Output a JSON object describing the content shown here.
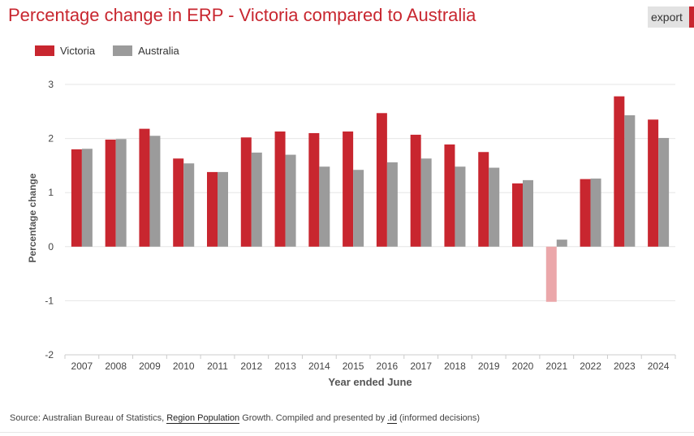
{
  "page": {
    "title": "Percentage change in ERP - Victoria compared to Australia",
    "export_label": "export",
    "source": {
      "prefix": "Source: Australian Bureau of Statistics,",
      "link1": "Region Population",
      "middle": "Growth. Compiled and presented by",
      "link2": ".id",
      "suffix": "(informed decisions)"
    }
  },
  "colors": {
    "victoria": "#c8262f",
    "australia": "#9b9b9b",
    "victoria_negative": "#eba7aa",
    "title": "#c8262f",
    "grid": "#e6e6e6"
  },
  "chart_data": {
    "type": "bar",
    "title": "Percentage change in ERP - Victoria compared to Australia",
    "xlabel": "Year ended June",
    "ylabel": "Percentage change",
    "ylim": [
      -2,
      3
    ],
    "yticks": [
      3,
      2,
      1,
      0,
      -1,
      -2
    ],
    "grid": true,
    "legend_position": "top-left",
    "categories": [
      "2007",
      "2008",
      "2009",
      "2010",
      "2011",
      "2012",
      "2013",
      "2014",
      "2015",
      "2016",
      "2017",
      "2018",
      "2019",
      "2020",
      "2021",
      "2022",
      "2023",
      "2024"
    ],
    "series": [
      {
        "name": "Victoria",
        "values": [
          1.8,
          1.98,
          2.18,
          1.63,
          1.38,
          2.02,
          2.13,
          2.1,
          2.13,
          2.47,
          2.07,
          1.89,
          1.75,
          1.17,
          -1.02,
          1.25,
          2.78,
          2.35
        ]
      },
      {
        "name": "Australia",
        "values": [
          1.81,
          1.99,
          2.05,
          1.54,
          1.38,
          1.74,
          1.7,
          1.48,
          1.42,
          1.56,
          1.63,
          1.48,
          1.46,
          1.23,
          0.13,
          1.26,
          2.43,
          2.01
        ]
      }
    ]
  }
}
